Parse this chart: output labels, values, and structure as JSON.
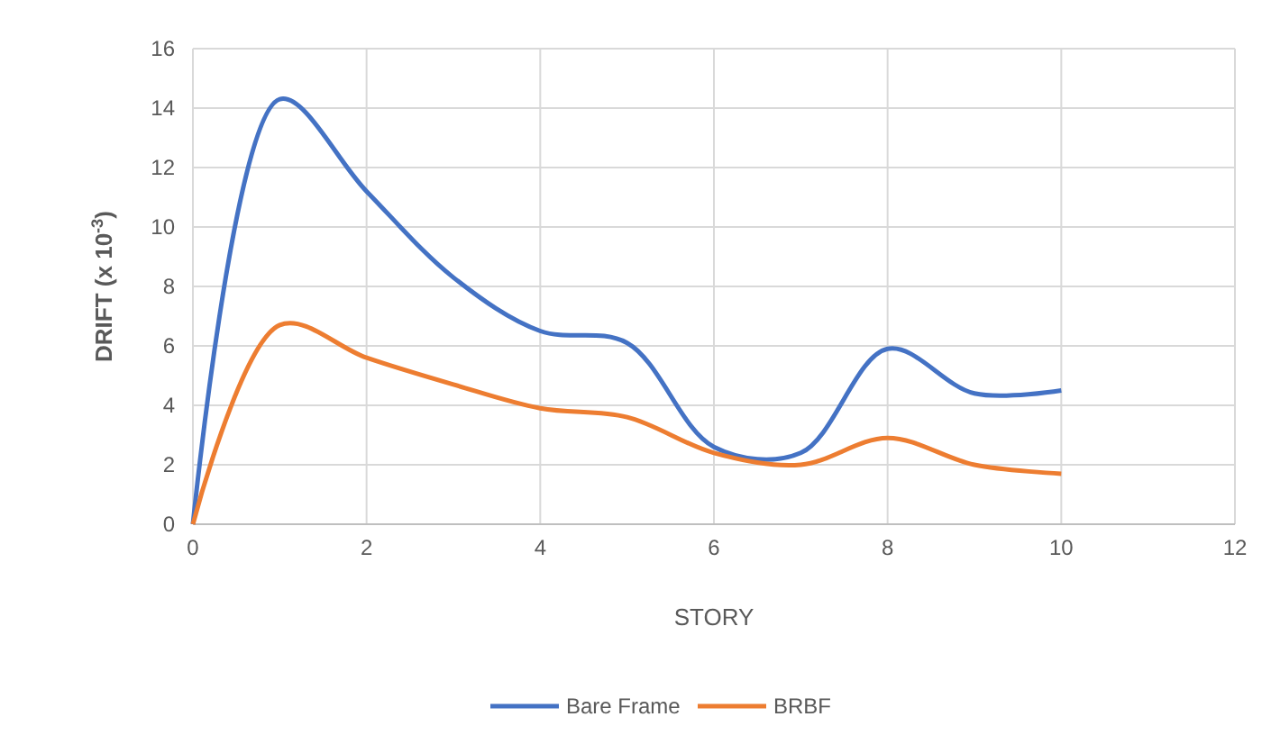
{
  "chart_data": {
    "type": "line",
    "xlabel": "STORY",
    "ylabel": "DRIFT (x 10$^{-3}$)",
    "x": [
      0,
      1,
      2,
      3,
      4,
      5,
      6,
      7,
      8,
      9,
      10
    ],
    "series": [
      {
        "name": "Bare Frame",
        "color": "#4472c4",
        "values": [
          0,
          14.3,
          11.2,
          8.3,
          6.5,
          6.1,
          2.6,
          2.4,
          5.9,
          4.4,
          4.5
        ]
      },
      {
        "name": "BRBF",
        "color": "#ed7d31",
        "values": [
          0,
          6.7,
          5.6,
          4.7,
          3.9,
          3.6,
          2.4,
          2.0,
          2.9,
          2.0,
          1.7
        ]
      }
    ],
    "xlim": [
      0,
      12
    ],
    "xticks": [
      0,
      2,
      4,
      6,
      8,
      10,
      12
    ],
    "ylim": [
      0,
      16
    ],
    "yticks": [
      0,
      2,
      4,
      6,
      8,
      10,
      12,
      14,
      16
    ],
    "grid": true,
    "legend": "bottom",
    "marker": "none",
    "line_style": "solid"
  }
}
